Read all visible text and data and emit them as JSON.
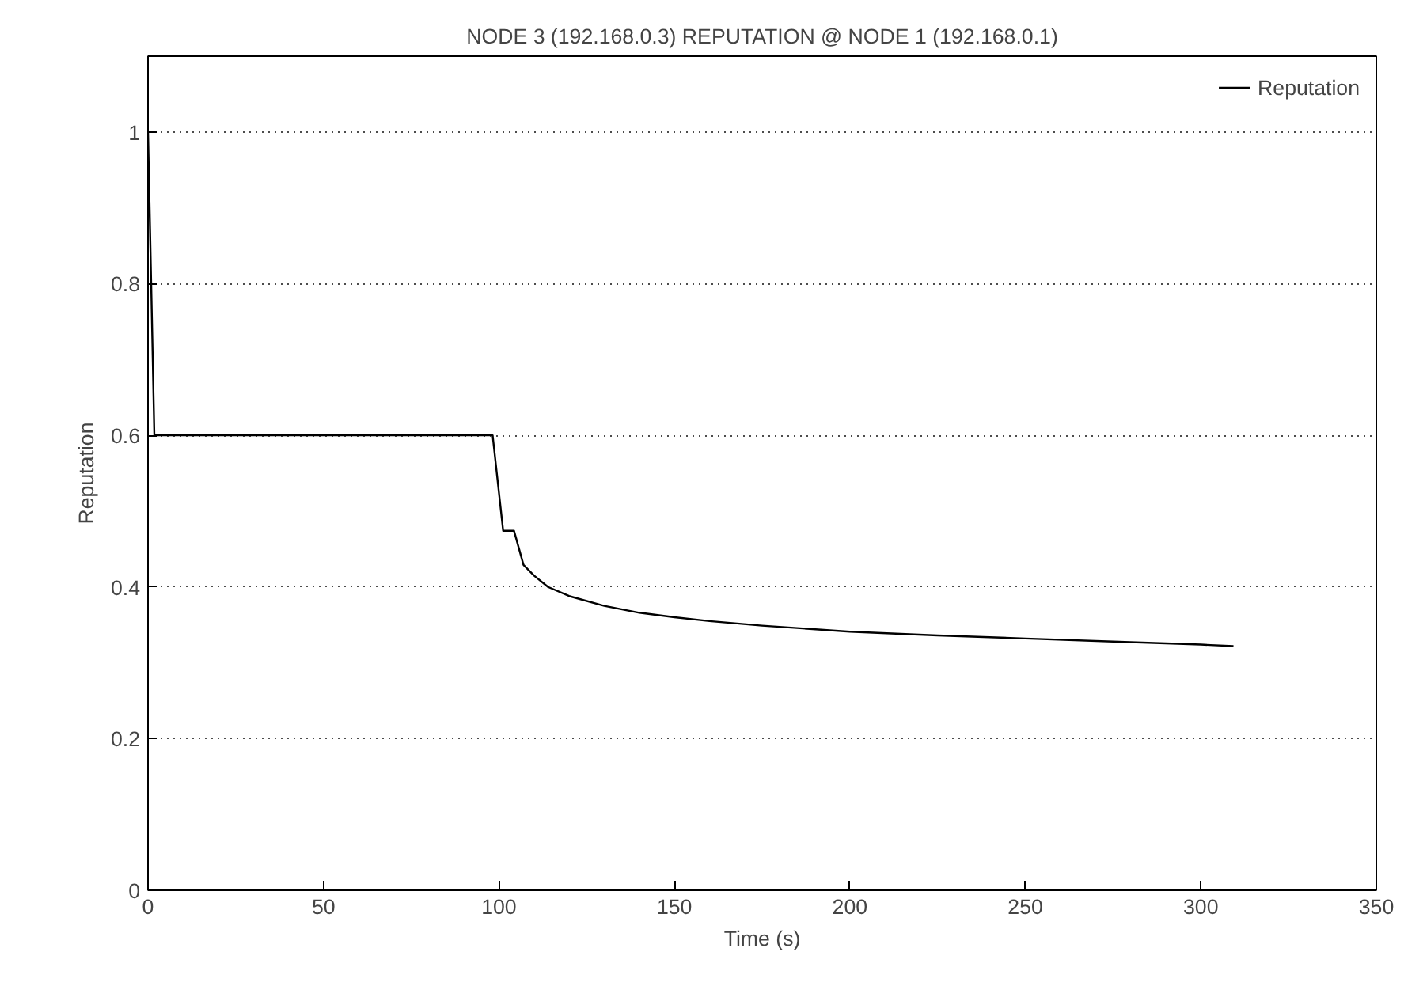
{
  "chart_data": {
    "type": "line",
    "title": "NODE 3 (192.168.0.3) REPUTATION @ NODE 1 (192.168.0.1)",
    "xlabel": "Time (s)",
    "ylabel": "Reputation",
    "x": [
      0,
      1.8,
      98.2,
      101.2,
      104.3,
      107,
      110,
      114,
      120,
      130,
      140,
      150,
      160,
      175,
      200,
      225,
      250,
      275,
      300,
      309.3
    ],
    "series": [
      {
        "name": "Reputation",
        "color": "#000000",
        "values": [
          1,
          0.6,
          0.6,
          0.474,
          0.474,
          0.429,
          0.415,
          0.4,
          0.388,
          0.375,
          0.366,
          0.36,
          0.355,
          0.349,
          0.341,
          0.336,
          0.332,
          0.328,
          0.324,
          0.322
        ]
      }
    ],
    "xlim": [
      0,
      350
    ],
    "xticks": [
      0,
      50,
      100,
      150,
      200,
      250,
      300,
      350
    ],
    "ylim": [
      0,
      1.1
    ],
    "yticks": [
      0,
      0.2,
      0.4,
      0.6,
      0.8,
      1
    ],
    "grid": "y",
    "legend": "top right",
    "marker": "none",
    "line_style": "solid"
  }
}
